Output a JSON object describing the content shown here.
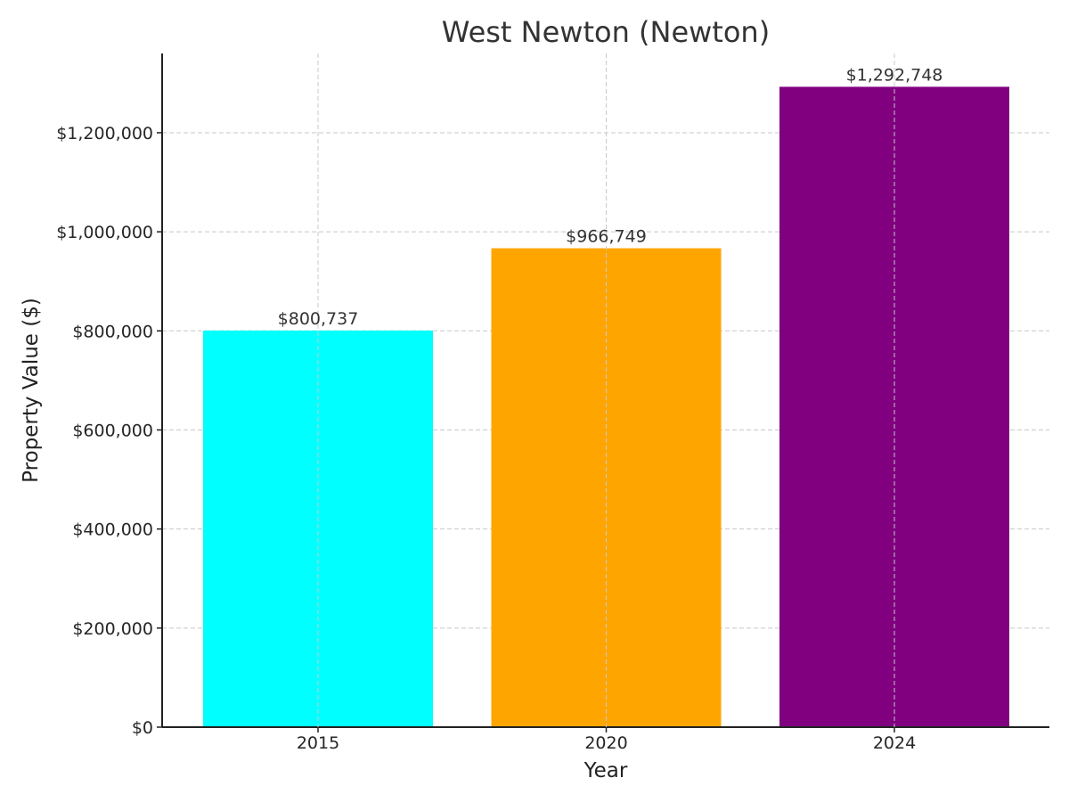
{
  "chart_data": {
    "type": "bar",
    "title": "West Newton (Newton)",
    "xlabel": "Year",
    "ylabel": "Property Value ($)",
    "categories": [
      "2015",
      "2020",
      "2024"
    ],
    "values": [
      800737,
      966749,
      1292748
    ],
    "value_labels": [
      "$800,737",
      "$966,749",
      "$1,292,748"
    ],
    "colors": [
      "#00ffff",
      "#ffa500",
      "#800080"
    ],
    "ylim": [
      0,
      1360000
    ],
    "yticks": [
      0,
      200000,
      400000,
      600000,
      800000,
      1000000,
      1200000
    ],
    "ytick_labels": [
      "$0",
      "$200,000",
      "$400,000",
      "$600,000",
      "$800,000",
      "$1,000,000",
      "$1,200,000"
    ],
    "grid": true,
    "legend": "none"
  }
}
